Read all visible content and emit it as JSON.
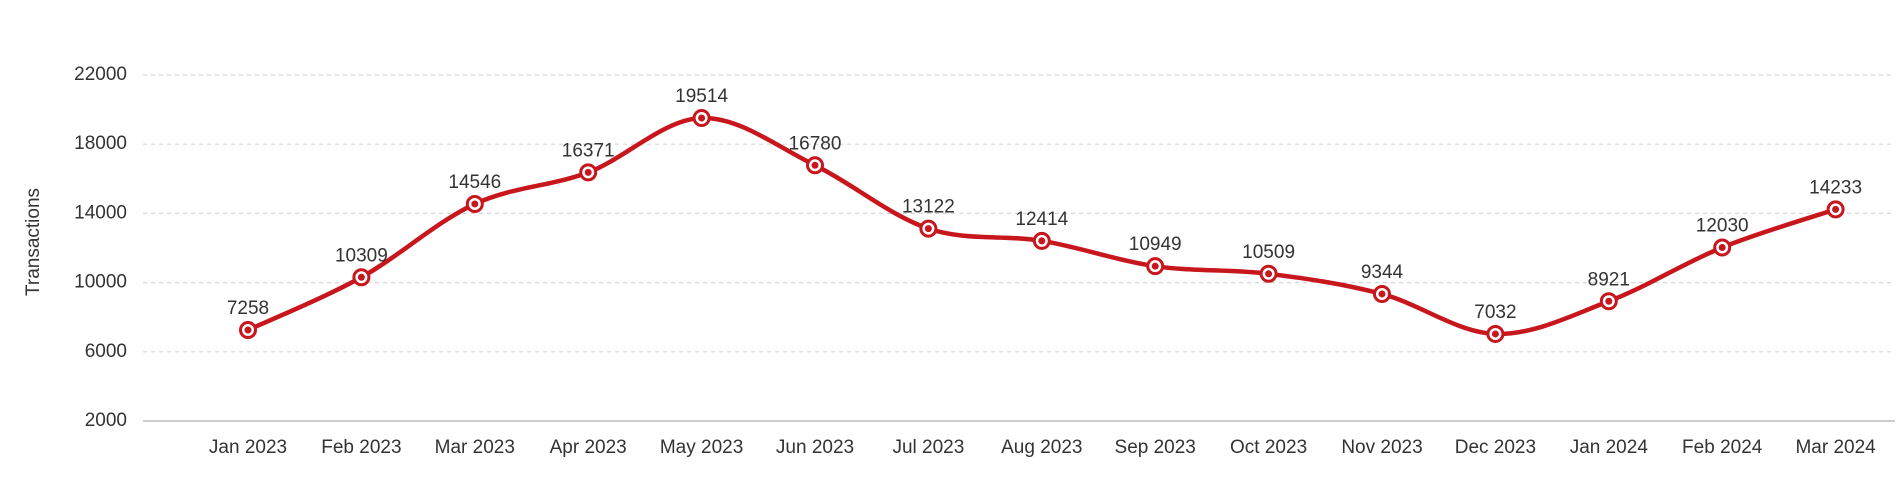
{
  "chart_data": {
    "type": "line",
    "y_label": "Transactions",
    "categories": [
      "Jan 2023",
      "Feb 2023",
      "Mar 2023",
      "Apr 2023",
      "May 2023",
      "Jun 2023",
      "Jul 2023",
      "Aug 2023",
      "Sep 2023",
      "Oct 2023",
      "Nov 2023",
      "Dec 2023",
      "Jan 2024",
      "Feb 2024",
      "Mar 2024"
    ],
    "series": [
      {
        "name": "Transactions",
        "color": "#c8161d",
        "values": [
          7258,
          10309,
          14546,
          16371,
          19514,
          16780,
          13122,
          12414,
          10949,
          10509,
          9344,
          7032,
          8921,
          12030,
          14233
        ]
      }
    ],
    "ylim": [
      2000,
      22000
    ],
    "yticks": [
      2000,
      6000,
      10000,
      14000,
      18000,
      22000
    ],
    "grid": true
  }
}
